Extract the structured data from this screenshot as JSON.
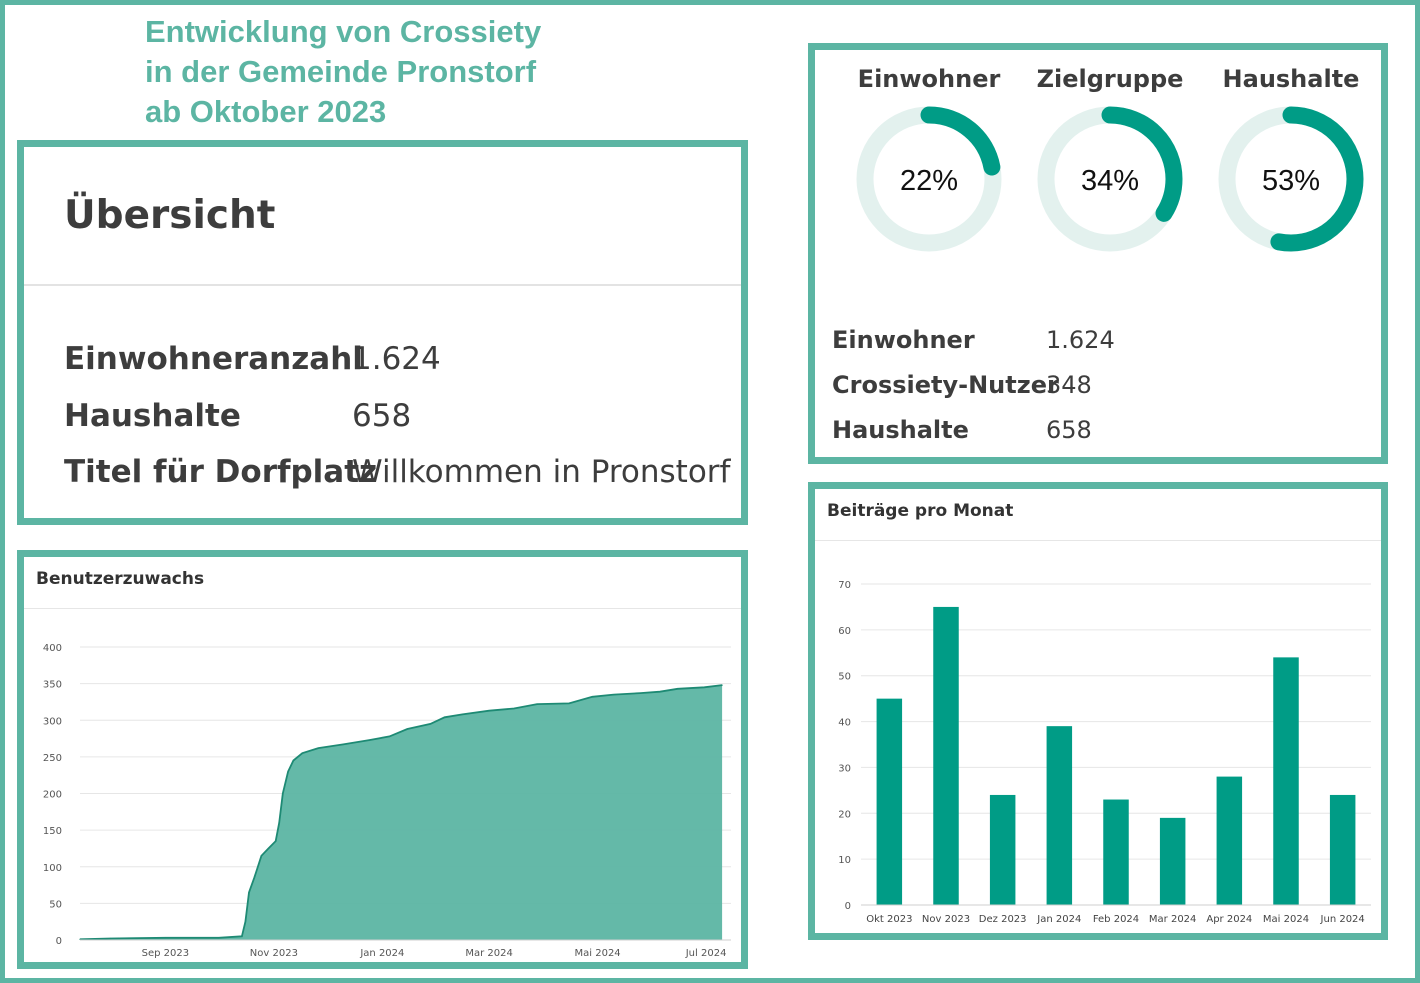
{
  "headline": {
    "lines": [
      "Entwicklung von Crossiety",
      "in der Gemeinde Pronstorf",
      "ab Oktober 2023"
    ]
  },
  "overview": {
    "title": "Übersicht",
    "rows": [
      {
        "label": "Einwohneranzahl",
        "value": "1.624"
      },
      {
        "label": "Haushalte",
        "value": "658"
      },
      {
        "label": "Titel für Dorfplatz",
        "value": "Willkommen in Pronstorf"
      }
    ]
  },
  "rings": [
    {
      "title": "Einwohner",
      "percent_label": "22%",
      "fraction": 0.22
    },
    {
      "title": "Zielgruppe",
      "percent_label": "34%",
      "fraction": 0.34
    },
    {
      "title": "Haushalte",
      "percent_label": "53%",
      "fraction": 0.53
    }
  ],
  "stats": [
    {
      "label": "Einwohner",
      "value": "1.624"
    },
    {
      "label": "Crossiety-Nutzer",
      "value": "348"
    },
    {
      "label": "Haushalte",
      "value": "658"
    }
  ],
  "colors": {
    "accent": "#5cb5a3",
    "bar": "#009c86",
    "area_fill": "#5cb5a3",
    "area_line": "#1e8a74",
    "ring_track": "#e3f1ee",
    "ring_fill": "#009c86"
  },
  "chart_data": [
    {
      "type": "area",
      "title": "Benutzerzuwachs",
      "xlabel": "",
      "ylabel": "",
      "ylim": [
        0,
        400
      ],
      "yticks": [
        0,
        50,
        100,
        150,
        200,
        250,
        300,
        350,
        400
      ],
      "xlim": [
        "2023-07-15",
        "2024-07-15"
      ],
      "xticks": [
        {
          "date": "2023-09-01",
          "label": "Sep 2023"
        },
        {
          "date": "2023-11-01",
          "label": "Nov 2023"
        },
        {
          "date": "2024-01-01",
          "label": "Jan 2024"
        },
        {
          "date": "2024-03-01",
          "label": "Mar 2024"
        },
        {
          "date": "2024-05-01",
          "label": "Mai 2024"
        },
        {
          "date": "2024-07-01",
          "label": "Jul 2024"
        }
      ],
      "grid": true,
      "points": [
        [
          "2023-07-15",
          1
        ],
        [
          "2023-08-01",
          2
        ],
        [
          "2023-09-01",
          3
        ],
        [
          "2023-10-01",
          3
        ],
        [
          "2023-10-14",
          5
        ],
        [
          "2023-10-16",
          25
        ],
        [
          "2023-10-18",
          65
        ],
        [
          "2023-10-21",
          85
        ],
        [
          "2023-10-25",
          115
        ],
        [
          "2023-10-29",
          125
        ],
        [
          "2023-11-02",
          135
        ],
        [
          "2023-11-04",
          160
        ],
        [
          "2023-11-06",
          200
        ],
        [
          "2023-11-09",
          230
        ],
        [
          "2023-11-12",
          245
        ],
        [
          "2023-11-17",
          255
        ],
        [
          "2023-11-26",
          262
        ],
        [
          "2023-12-10",
          267
        ],
        [
          "2023-12-25",
          273
        ],
        [
          "2024-01-05",
          278
        ],
        [
          "2024-01-15",
          288
        ],
        [
          "2024-01-28",
          295
        ],
        [
          "2024-02-05",
          304
        ],
        [
          "2024-02-15",
          308
        ],
        [
          "2024-03-01",
          313
        ],
        [
          "2024-03-15",
          316
        ],
        [
          "2024-03-28",
          322
        ],
        [
          "2024-04-15",
          323
        ],
        [
          "2024-04-28",
          332
        ],
        [
          "2024-05-10",
          335
        ],
        [
          "2024-05-25",
          337
        ],
        [
          "2024-06-05",
          339
        ],
        [
          "2024-06-15",
          343
        ],
        [
          "2024-06-30",
          345
        ],
        [
          "2024-07-10",
          348
        ]
      ]
    },
    {
      "type": "bar",
      "title": "Beiträge pro Monat",
      "xlabel": "",
      "ylabel": "",
      "ylim": [
        0,
        70
      ],
      "yticks": [
        0,
        10,
        20,
        30,
        40,
        50,
        60,
        70
      ],
      "grid": true,
      "categories": [
        "Okt 2023",
        "Nov 2023",
        "Dez 2023",
        "Jan 2024",
        "Feb 2024",
        "Mar 2024",
        "Apr 2024",
        "Mai 2024",
        "Jun 2024"
      ],
      "values": [
        45,
        65,
        24,
        39,
        23,
        19,
        28,
        54,
        24
      ]
    }
  ]
}
